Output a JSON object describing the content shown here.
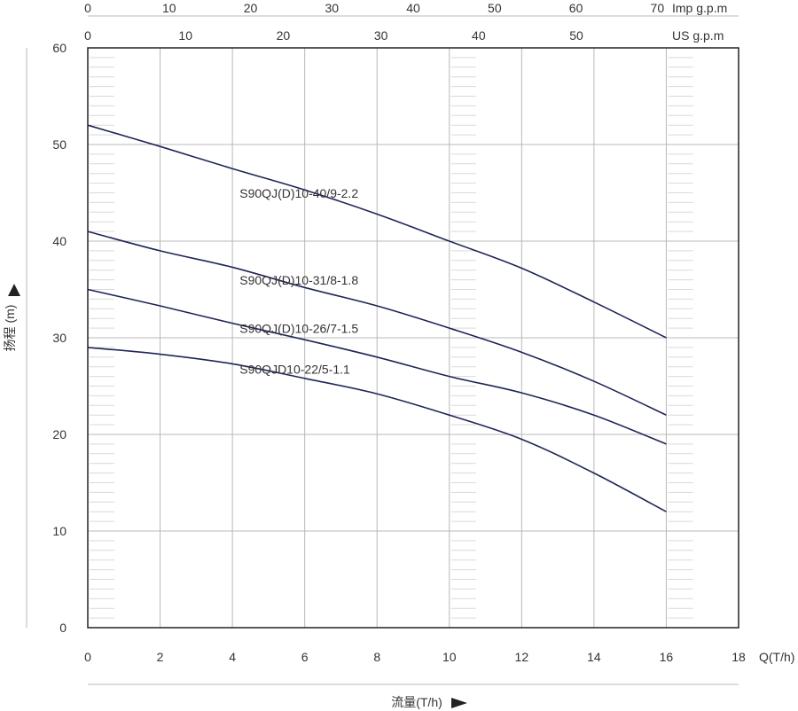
{
  "chart_data": {
    "type": "line",
    "xlabel": "流量(T/h)",
    "x_unit_label": "Q(T/h)",
    "ylabel": "扬程 (m)",
    "xlim": [
      0,
      18
    ],
    "ylim": [
      0,
      60
    ],
    "x_ticks": [
      0,
      2,
      4,
      6,
      8,
      10,
      12,
      14,
      16,
      18
    ],
    "y_ticks": [
      0,
      10,
      20,
      30,
      40,
      50,
      60
    ],
    "top_axes": [
      {
        "label": "Imp g.p.m",
        "ticks": [
          0,
          10,
          20,
          30,
          40,
          50,
          60,
          70
        ]
      },
      {
        "label": "US g.p.m",
        "ticks": [
          0,
          10,
          20,
          30,
          40,
          50
        ]
      }
    ],
    "grid": true,
    "series": [
      {
        "name": "S90QJ(D)10-40/9-2.2",
        "x": [
          0,
          2,
          4,
          6,
          8,
          10,
          12,
          14,
          16
        ],
        "values": [
          52,
          49.8,
          47.5,
          45.3,
          42.8,
          40,
          37.2,
          33.7,
          30
        ],
        "label_x": 4.2,
        "label_y": 44.5
      },
      {
        "name": "S90QJ(D)10-31/8-1.8",
        "x": [
          0,
          2,
          4,
          6,
          8,
          10,
          12,
          14,
          16
        ],
        "values": [
          41,
          39,
          37.3,
          35.2,
          33.3,
          31,
          28.5,
          25.5,
          22
        ],
        "label_x": 4.2,
        "label_y": 35.5
      },
      {
        "name": "S90QJ(D)10-26/7-1.5",
        "x": [
          0,
          2,
          4,
          6,
          8,
          10,
          12,
          14,
          16
        ],
        "values": [
          35,
          33.3,
          31.5,
          29.8,
          28,
          26,
          24.3,
          22,
          19
        ],
        "label_x": 4.2,
        "label_y": 30.5
      },
      {
        "name": "S90QJD10-22/5-1.1",
        "x": [
          0,
          2,
          4,
          6,
          8,
          10,
          12,
          14,
          16
        ],
        "values": [
          29,
          28.3,
          27.3,
          25.8,
          24.2,
          22,
          19.5,
          16,
          12
        ],
        "label_x": 4.2,
        "label_y": 26.3
      }
    ],
    "colors": {
      "curve": "#1f2557",
      "grid": "#b8b8b8",
      "frame": "#222222",
      "text": "#333333"
    }
  }
}
